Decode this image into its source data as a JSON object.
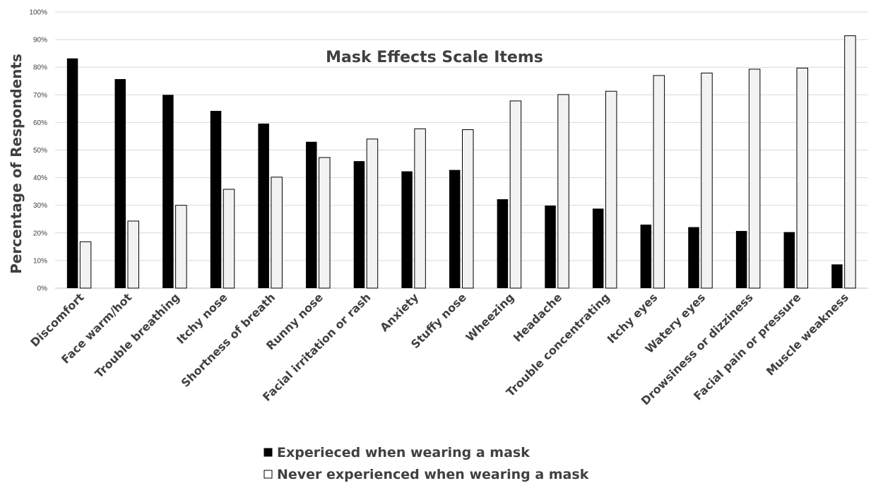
{
  "chart_data": {
    "type": "bar",
    "title": "Mask Effects Scale Items",
    "xlabel": "",
    "ylabel": "Percentage of Respondents",
    "ylim": [
      0,
      100
    ],
    "y_ticks": [
      "0%",
      "10%",
      "20%",
      "30%",
      "40%",
      "50%",
      "60%",
      "70%",
      "80%",
      "90%",
      "100%"
    ],
    "grid": true,
    "legend_position": "bottom",
    "categories": [
      "Discomfort",
      "Face warm/hot",
      "Trouble breathing",
      "Itchy nose",
      "Shortness of breath",
      "Runny nose",
      "Facial irritation or rash",
      "Anxiety",
      "Stuffy nose",
      "Wheezing",
      "Headache",
      "Trouble concentrating",
      "Itchy eyes",
      "Watery eyes",
      "Drowsiness or dizziness",
      "Facial pain or pressure",
      "Muscle weakness"
    ],
    "series": [
      {
        "name": "Experieced when wearing a mask",
        "color": "#000000",
        "values": [
          83.2,
          75.7,
          70.0,
          64.2,
          59.6,
          53.0,
          46.0,
          42.3,
          42.8,
          32.2,
          29.9,
          28.8,
          23.0,
          22.1,
          20.7,
          20.3,
          8.6
        ]
      },
      {
        "name": "Never experienced when wearing a mask",
        "color": "#f2f2f2",
        "values": [
          16.8,
          24.3,
          30.0,
          35.8,
          40.2,
          47.3,
          54.0,
          57.7,
          57.4,
          67.8,
          70.1,
          71.3,
          77.0,
          77.9,
          79.3,
          79.7,
          91.4
        ]
      }
    ]
  }
}
